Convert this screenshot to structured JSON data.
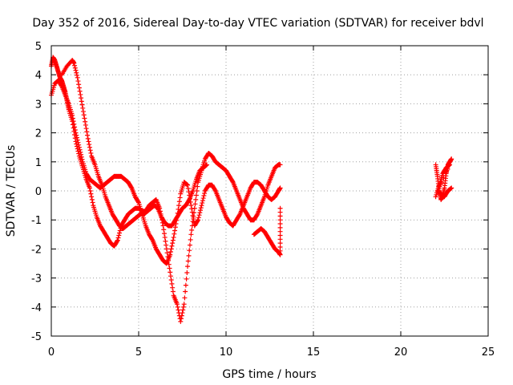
{
  "chart_data": {
    "type": "scatter",
    "title": "Day 352 of 2016, Sidereal Day-to-day VTEC variation (SDTVAR) for receiver bdvl",
    "xlabel": "GPS time / hours",
    "ylabel": "SDTVAR / TECUs",
    "xlim": [
      0,
      25
    ],
    "ylim": [
      -5,
      5
    ],
    "x_ticks": [
      0,
      5,
      10,
      15,
      20,
      25
    ],
    "y_ticks": [
      -5,
      -4,
      -3,
      -2,
      -1,
      0,
      1,
      2,
      3,
      4,
      5
    ],
    "grid": true,
    "marker": "+",
    "series_color": "#ff0000",
    "series": [
      {
        "x": [
          0.0,
          0.1,
          0.2,
          0.3,
          0.4,
          0.5,
          0.6,
          0.7,
          0.8,
          0.9,
          1.0,
          1.2,
          1.4,
          1.6,
          1.8,
          2.0,
          2.2,
          2.4,
          2.6,
          2.8,
          3.0,
          3.2,
          3.4,
          3.6,
          3.8,
          4.0,
          4.2,
          4.4,
          4.6,
          4.8,
          5.0,
          5.2,
          5.4,
          5.6,
          5.8,
          6.0,
          6.2,
          6.4,
          6.6,
          6.8,
          7.0,
          7.2,
          7.4,
          7.6,
          7.8,
          8.0,
          8.2,
          8.4,
          8.6,
          8.8,
          9.0,
          9.2,
          9.4,
          9.6,
          9.8,
          10.0,
          10.2,
          10.4,
          10.6,
          10.8,
          11.0,
          11.2,
          11.4,
          11.6,
          11.8,
          12.0,
          12.2,
          12.4,
          12.6,
          12.8,
          13.0,
          13.1
        ],
        "y": [
          4.3,
          4.6,
          4.5,
          4.3,
          4.1,
          3.9,
          3.8,
          3.6,
          3.4,
          3.1,
          2.8,
          2.4,
          1.7,
          1.2,
          0.8,
          0.4,
          0.1,
          -0.5,
          -0.9,
          -1.2,
          -1.4,
          -1.6,
          -1.8,
          -1.9,
          -1.7,
          -1.2,
          -1.0,
          -0.8,
          -0.7,
          -0.6,
          -0.6,
          -0.7,
          -0.7,
          -0.5,
          -0.4,
          -0.3,
          -0.6,
          -1.2,
          -2.0,
          -2.8,
          -3.6,
          -3.9,
          -4.5,
          -3.9,
          -2.6,
          -1.5,
          -0.6,
          0.3,
          0.7,
          1.1,
          1.3,
          1.2,
          1.0,
          0.9,
          0.8,
          0.7,
          0.5,
          0.3,
          0.0,
          -0.3,
          -0.6,
          -0.8,
          -1.0,
          -1.0,
          -0.8,
          -0.5,
          -0.2,
          0.2,
          0.5,
          0.8,
          0.9,
          0.9
        ]
      },
      {
        "x": [
          0.0,
          0.2,
          0.4,
          0.6,
          0.8,
          1.0,
          1.2,
          1.4,
          1.6,
          1.8,
          2.0,
          2.2,
          2.4,
          2.6,
          2.8,
          3.0,
          3.2,
          3.4,
          3.6,
          3.8,
          4.0,
          4.2,
          4.4,
          4.6,
          4.8,
          5.0,
          5.2,
          5.4,
          5.6,
          5.8,
          6.0,
          6.2,
          6.4,
          6.6,
          6.8,
          7.0,
          7.2,
          7.4,
          7.6,
          7.8,
          8.0,
          8.2,
          8.4,
          8.6,
          8.8,
          9.0,
          9.2,
          9.4,
          9.6,
          9.8,
          10.0,
          10.2,
          10.4,
          10.6,
          10.8,
          11.0,
          11.2,
          11.4,
          11.6,
          11.8,
          12.0,
          12.2,
          12.4,
          12.6,
          12.8,
          13.0,
          13.1
        ],
        "y": [
          3.3,
          3.7,
          3.8,
          3.6,
          3.3,
          3.0,
          2.6,
          2.0,
          1.5,
          1.0,
          0.6,
          0.4,
          0.3,
          0.2,
          0.1,
          0.2,
          0.3,
          0.4,
          0.5,
          0.5,
          0.5,
          0.4,
          0.3,
          0.1,
          -0.2,
          -0.4,
          -0.8,
          -1.2,
          -1.5,
          -1.7,
          -2.0,
          -2.2,
          -2.4,
          -2.5,
          -2.2,
          -1.6,
          -0.9,
          -0.1,
          0.3,
          0.2,
          -0.5,
          -1.2,
          -1.0,
          -0.5,
          0.0,
          0.2,
          0.2,
          0.0,
          -0.3,
          -0.6,
          -0.9,
          -1.1,
          -1.2,
          -1.0,
          -0.8,
          -0.5,
          -0.2,
          0.1,
          0.3,
          0.3,
          0.2,
          0.0,
          -0.2,
          -0.3,
          -0.2,
          0.0,
          0.1
        ]
      },
      {
        "x": [
          0.6,
          0.9,
          1.2,
          1.3,
          1.5,
          1.7,
          1.9,
          2.1,
          2.3,
          2.5,
          2.7,
          2.9,
          3.1,
          3.3,
          3.5,
          3.7,
          3.9,
          4.1,
          4.3,
          4.5,
          4.7,
          4.9,
          5.1,
          5.3,
          5.5,
          5.7,
          5.9,
          6.1,
          6.3,
          6.5,
          6.7,
          6.9,
          7.1,
          7.3,
          7.5,
          7.7,
          7.9,
          8.1,
          8.3,
          8.5,
          8.7,
          8.9
        ],
        "y": [
          4.0,
          4.3,
          4.5,
          4.4,
          3.9,
          3.2,
          2.5,
          1.8,
          1.2,
          0.9,
          0.5,
          0.2,
          -0.2,
          -0.5,
          -0.8,
          -1.0,
          -1.2,
          -1.3,
          -1.2,
          -1.1,
          -1.0,
          -0.9,
          -0.8,
          -0.8,
          -0.7,
          -0.6,
          -0.5,
          -0.6,
          -0.9,
          -1.1,
          -1.2,
          -1.2,
          -1.0,
          -0.8,
          -0.6,
          -0.5,
          -0.3,
          0.0,
          0.4,
          0.7,
          0.8,
          0.9
        ]
      },
      {
        "x": [
          11.6,
          11.8,
          12.0,
          12.2,
          12.4,
          12.6,
          12.8,
          13.0,
          13.1,
          13.1,
          13.1
        ],
        "y": [
          -1.5,
          -1.4,
          -1.3,
          -1.4,
          -1.6,
          -1.8,
          -2.0,
          -2.1,
          -2.2,
          -1.4,
          -0.6
        ]
      },
      {
        "x": [
          22.0,
          22.1,
          22.2,
          22.3,
          22.4,
          22.5,
          22.6,
          22.7,
          22.8,
          22.9,
          22.0,
          22.2,
          22.4,
          22.6,
          22.8,
          22.1,
          22.3,
          22.5,
          22.7,
          22.9
        ],
        "y": [
          0.9,
          0.5,
          0.0,
          -0.3,
          -0.2,
          0.1,
          0.6,
          0.9,
          1.0,
          1.1,
          -0.2,
          0.2,
          0.6,
          0.8,
          0.9,
          0.0,
          -0.1,
          -0.2,
          0.0,
          0.1
        ]
      }
    ]
  }
}
